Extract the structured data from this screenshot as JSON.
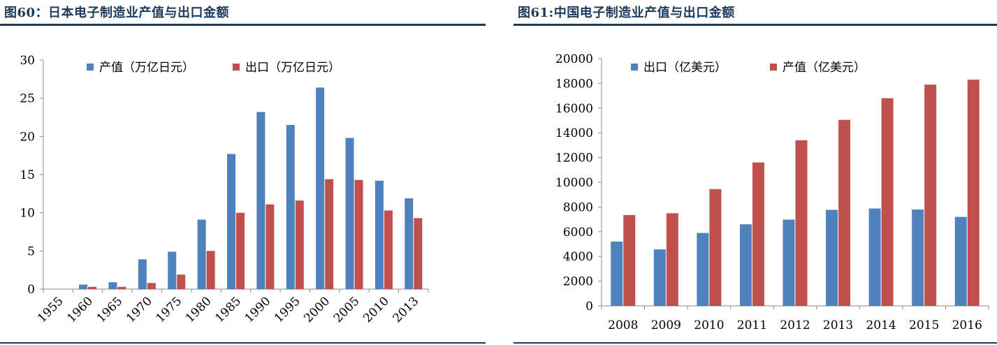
{
  "charts": [
    {
      "id": "left",
      "title": "图60：日本电子制造业产值与出口金额",
      "chart_data": {
        "type": "bar",
        "categories": [
          "1955",
          "1960",
          "1965",
          "1970",
          "1975",
          "1980",
          "1985",
          "1990",
          "1995",
          "2000",
          "2005",
          "2010",
          "2013"
        ],
        "series": [
          {
            "name": "产值（万亿日元）",
            "color": "#4f81bd",
            "values": [
              0,
              0.6,
              0.9,
              3.9,
              4.9,
              9.1,
              17.7,
              23.2,
              21.5,
              26.4,
              19.8,
              14.2,
              11.9
            ]
          },
          {
            "name": "出口（万亿日元）",
            "color": "#c0504d",
            "values": [
              0,
              0.3,
              0.3,
              0.8,
              1.9,
              5.0,
              10.0,
              11.1,
              11.6,
              14.4,
              14.3,
              10.3,
              9.3
            ]
          }
        ],
        "ylim": [
          0,
          30
        ],
        "yticks": [
          0,
          5,
          10,
          15,
          20,
          25,
          30
        ],
        "grid": false,
        "legend": "top"
      }
    },
    {
      "id": "right",
      "title": "图61:中国电子制造业产值与出口金额",
      "chart_data": {
        "type": "bar",
        "categories": [
          "2008",
          "2009",
          "2010",
          "2011",
          "2012",
          "2013",
          "2014",
          "2015",
          "2016"
        ],
        "series": [
          {
            "name": "出口（亿美元）",
            "color": "#4f81bd",
            "values": [
              5200,
              4570,
              5900,
              6600,
              6980,
              7770,
              7880,
              7800,
              7200
            ]
          },
          {
            "name": "产值（亿美元）",
            "color": "#c0504d",
            "values": [
              7350,
              7500,
              9450,
              11600,
              13400,
              15050,
              16800,
              17900,
              18300
            ]
          }
        ],
        "ylim": [
          0,
          20000
        ],
        "yticks": [
          0,
          2000,
          4000,
          6000,
          8000,
          10000,
          12000,
          14000,
          16000,
          18000,
          20000
        ],
        "grid": false,
        "legend": "top"
      }
    }
  ]
}
